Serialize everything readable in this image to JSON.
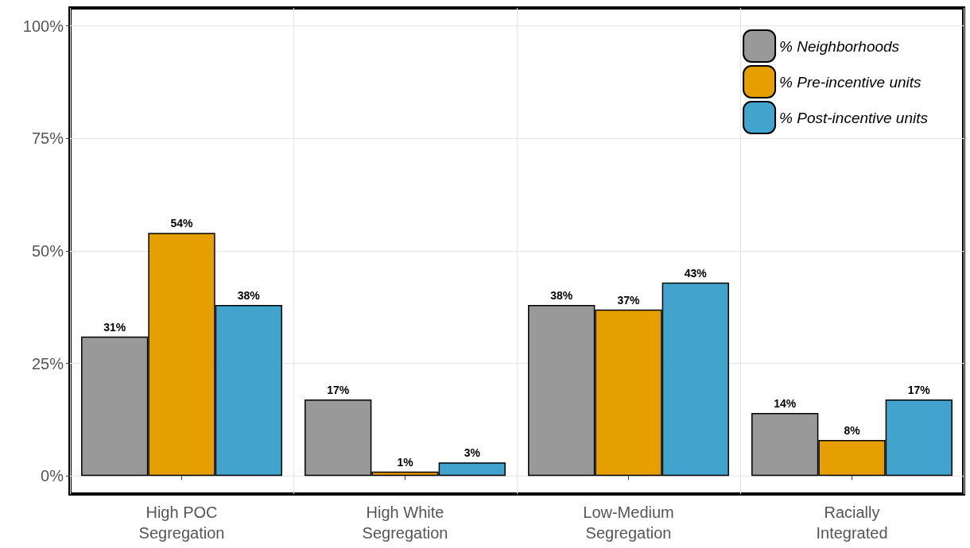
{
  "chart_data": {
    "type": "bar",
    "categories": [
      "High POC\nSegregation",
      "High White\nSegregation",
      "Low-Medium\nSegregation",
      "Racially\nIntegrated"
    ],
    "series": [
      {
        "name": "% Neighborhoods",
        "color": "#999999",
        "values": [
          31,
          17,
          38,
          14
        ],
        "value_labels": [
          "31%",
          "17%",
          "38%",
          "14%"
        ]
      },
      {
        "name": "% Pre-incentive units",
        "color": "#e69f00",
        "values": [
          54,
          1,
          37,
          8
        ],
        "value_labels": [
          "54%",
          "1%",
          "37%",
          "8%"
        ]
      },
      {
        "name": "% Post-incentive units",
        "color": "#42a3cc",
        "values": [
          38,
          3,
          43,
          17
        ],
        "value_labels": [
          "38%",
          "3%",
          "43%",
          "17%"
        ]
      }
    ],
    "ylim": [
      -4,
      104
    ],
    "yticks": [
      {
        "value": 0,
        "label": "0%"
      },
      {
        "value": 25,
        "label": "25%"
      },
      {
        "value": 50,
        "label": "50%"
      },
      {
        "value": 75,
        "label": "75%"
      },
      {
        "value": 100,
        "label": "100%"
      }
    ],
    "grid": true,
    "legend": "top right"
  }
}
